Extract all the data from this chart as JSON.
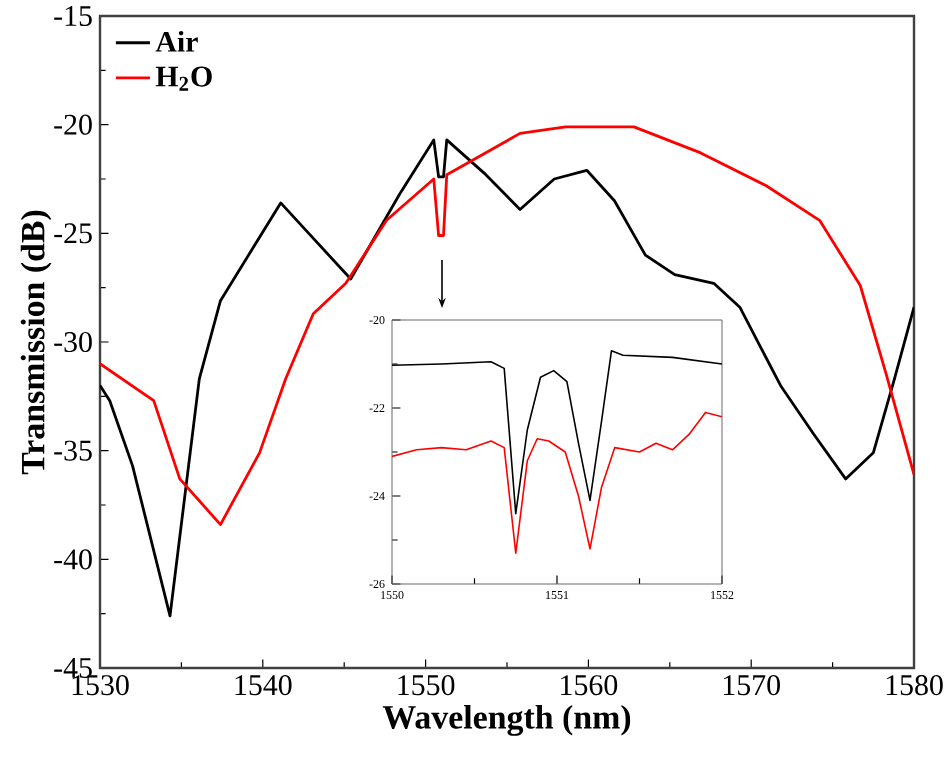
{
  "chart_data": [
    {
      "type": "line",
      "xlabel": "Wavelength (nm)",
      "ylabel": "Transmission (dB)",
      "xlim": [
        1530,
        1580
      ],
      "ylim": [
        -45,
        -15
      ],
      "xticks": [
        1530,
        1540,
        1550,
        1560,
        1570,
        1580
      ],
      "yticks": [
        -45,
        -40,
        -35,
        -30,
        -25,
        -20,
        -15
      ],
      "legend": "top left",
      "grid": false,
      "marker": "none",
      "line_style": "solid",
      "series": [
        {
          "name": "Air",
          "color": "#000000",
          "x": [
            1530,
            1530.6,
            1532,
            1534.3,
            1536.1,
            1537.4,
            1541.1,
            1545.4,
            1548.4,
            1550.5,
            1550.8,
            1551.1,
            1551.3,
            1553.7,
            1555.8,
            1557.9,
            1559.9,
            1561.6,
            1563.5,
            1565.3,
            1567.7,
            1569.3,
            1571.8,
            1573.8,
            1575.8,
            1577.5,
            1578.8,
            1580
          ],
          "values": [
            -32,
            -32.7,
            -35.7,
            -42.6,
            -31.7,
            -28.1,
            -23.6,
            -27.1,
            -23.2,
            -20.7,
            -22.4,
            -22.4,
            -20.7,
            -22.3,
            -23.9,
            -22.5,
            -22.1,
            -23.5,
            -26,
            -26.9,
            -27.3,
            -28.4,
            -32,
            -34.2,
            -36.3,
            -35.1,
            -31.7,
            -28.4
          ]
        },
        {
          "name": "H$_{2}$O",
          "color": "#ff0000",
          "x": [
            1530,
            1533.3,
            1534.9,
            1537.4,
            1539.8,
            1541.4,
            1543.1,
            1545.1,
            1547.6,
            1550.5,
            1550.8,
            1551.1,
            1551.3,
            1552.5,
            1555.8,
            1558.6,
            1562.8,
            1566.9,
            1570.9,
            1574.2,
            1576.7,
            1578.3,
            1580
          ],
          "values": [
            -31,
            -32.7,
            -36.3,
            -38.4,
            -35.1,
            -31.7,
            -28.7,
            -27.3,
            -24.4,
            -22.5,
            -25.1,
            -25.1,
            -22.3,
            -21.8,
            -20.4,
            -20.1,
            -20.1,
            -21.3,
            -22.8,
            -24.4,
            -27.4,
            -31.5,
            -36.1
          ]
        }
      ]
    },
    {
      "type": "line",
      "xlim": [
        1550,
        1552
      ],
      "ylim": [
        -26,
        -20
      ],
      "xticks": [
        1550,
        1551,
        1552
      ],
      "yticks": [
        -26,
        -24,
        -22,
        -20
      ],
      "grid": false,
      "marker": "none",
      "line_style": "solid",
      "series": [
        {
          "color": "#000000",
          "x": [
            1550,
            1550.3,
            1550.6,
            1550.68,
            1550.75,
            1550.82,
            1550.9,
            1550.98,
            1551.06,
            1551.13,
            1551.2,
            1551.27,
            1551.33,
            1551.4,
            1551.7,
            1552
          ],
          "values": [
            -21.03,
            -21,
            -20.95,
            -21.1,
            -24.4,
            -22.5,
            -21.3,
            -21.15,
            -21.4,
            -22.8,
            -24.1,
            -22.3,
            -20.7,
            -20.8,
            -20.85,
            -21
          ]
        },
        {
          "color": "#ff0000",
          "x": [
            1550,
            1550.15,
            1550.3,
            1550.45,
            1550.6,
            1550.68,
            1550.75,
            1550.82,
            1550.88,
            1550.95,
            1551.05,
            1551.13,
            1551.2,
            1551.27,
            1551.35,
            1551.5,
            1551.6,
            1551.7,
            1551.8,
            1551.9,
            1552
          ],
          "values": [
            -23.1,
            -22.95,
            -22.9,
            -22.95,
            -22.75,
            -22.9,
            -25.3,
            -23.2,
            -22.7,
            -22.75,
            -23.0,
            -24.0,
            -25.2,
            -23.8,
            -22.9,
            -23.0,
            -22.8,
            -22.95,
            -22.6,
            -22.1,
            -22.2
          ]
        }
      ]
    }
  ]
}
